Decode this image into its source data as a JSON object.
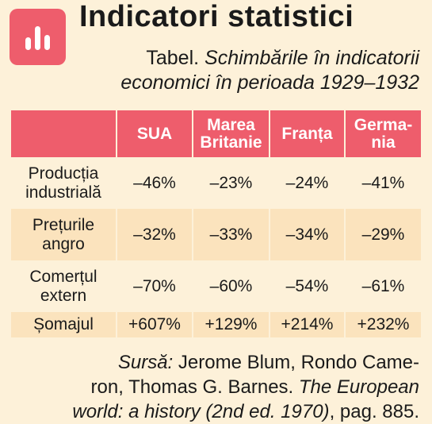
{
  "header": {
    "icon": "bar-chart-icon",
    "accent_color": "#ee5d6c",
    "title": "Indicatori statistici"
  },
  "caption": {
    "label": "Tabel.",
    "line1": "Schimbările în indicatorii",
    "line2": "economici în perioada 1929–1932"
  },
  "table": {
    "columns": [
      {
        "line1": "SUA",
        "line2": ""
      },
      {
        "line1": "Marea",
        "line2": "Britanie"
      },
      {
        "line1": "Franța",
        "line2": ""
      },
      {
        "line1": "Germa-",
        "line2": "nia"
      }
    ],
    "rows": [
      {
        "label1": "Producția",
        "label2": "industrială",
        "values": [
          "–46%",
          "–23%",
          "–24%",
          "–41%"
        ]
      },
      {
        "label1": "Prețurile",
        "label2": "angro",
        "values": [
          "–32%",
          "–33%",
          "–34%",
          "–29%"
        ]
      },
      {
        "label1": "Comerțul",
        "label2": "extern",
        "values": [
          "–70%",
          "–60%",
          "–54%",
          "–61%"
        ]
      },
      {
        "label1": "Șomajul",
        "label2": "",
        "values": [
          "+607%",
          "+129%",
          "+214%",
          "+232%"
        ]
      }
    ]
  },
  "source": {
    "label": "Sursă:",
    "line1_rest": " Jerome Blum, Rondo Came-",
    "line2": "ron, Thomas G. Barnes. ",
    "line2_it": "The European",
    "line3_it": "world: a history (2nd ed. 1970)",
    "line3_rest": ", pag. 885."
  }
}
